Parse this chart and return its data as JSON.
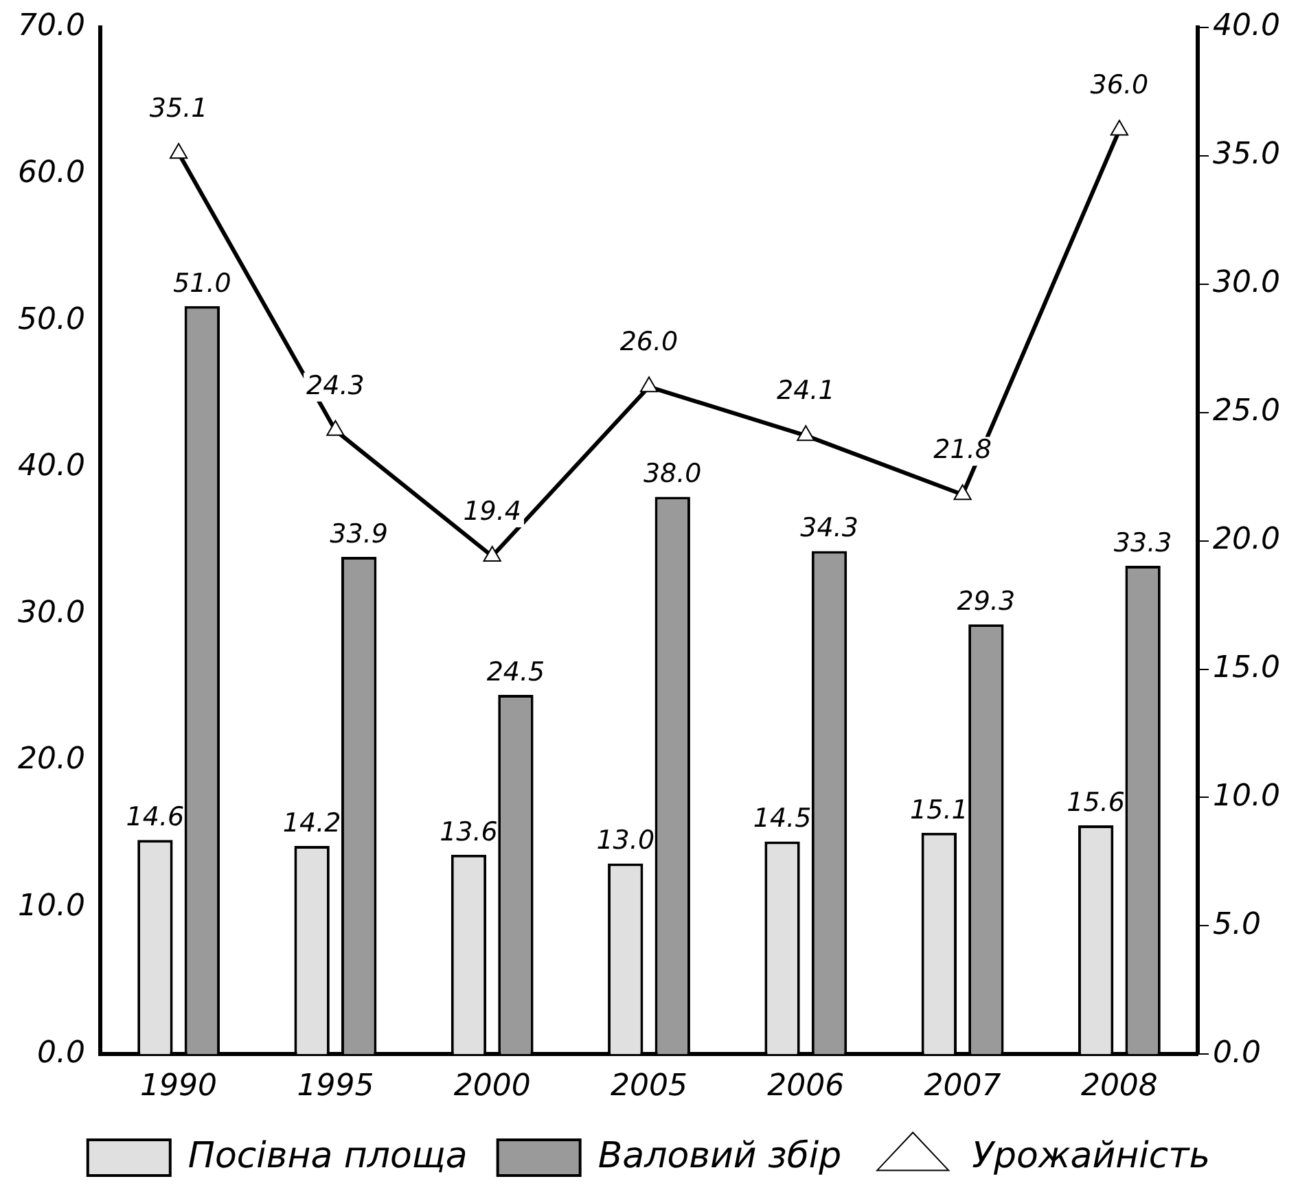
{
  "chart_data": {
    "type": "bar",
    "categories": [
      "1990",
      "1995",
      "2000",
      "2005",
      "2006",
      "2007",
      "2008"
    ],
    "series": [
      {
        "name": "Посівна площа",
        "color": "#e0e0e0",
        "values": [
          14.6,
          14.2,
          13.6,
          13.0,
          14.5,
          15.1,
          15.6
        ],
        "value_labels": [
          "14.6",
          "14.2",
          "13.6",
          "13.0",
          "14.5",
          "15.1",
          "15.6"
        ]
      },
      {
        "name": "Валовий збір",
        "color": "#9a9a9a",
        "values": [
          51.0,
          33.9,
          24.5,
          38.0,
          34.3,
          29.3,
          33.3
        ],
        "value_labels": [
          "51.0",
          "33.9",
          "24.5",
          "38.0",
          "34.3",
          "29.3",
          "33.3"
        ]
      },
      {
        "name": "Урожайність",
        "type": "line",
        "axis": "y2",
        "color": "#000000",
        "values": [
          35.1,
          24.3,
          19.4,
          26.0,
          24.1,
          21.8,
          36.0
        ],
        "value_labels": [
          "35.1",
          "24.3",
          "19.4",
          "26.0",
          "24.1",
          "21.8",
          "36.0"
        ]
      }
    ],
    "ylim": [
      0,
      70
    ],
    "yticks": [
      {
        "value": 0,
        "label": "0.0"
      },
      {
        "value": 10,
        "label": "10.0"
      },
      {
        "value": 20,
        "label": "20.0"
      },
      {
        "value": 30,
        "label": "30.0"
      },
      {
        "value": 40,
        "label": "40.0"
      },
      {
        "value": 50,
        "label": "50.0"
      },
      {
        "value": 60,
        "label": "60.0"
      },
      {
        "value": 70,
        "label": "70.0"
      }
    ],
    "y2lim": [
      0,
      40
    ],
    "y2ticks": [
      {
        "value": 0,
        "label": "0.0"
      },
      {
        "value": 5,
        "label": "5.0"
      },
      {
        "value": 10,
        "label": "10.0"
      },
      {
        "value": 15,
        "label": "15.0"
      },
      {
        "value": 20,
        "label": "20.0"
      },
      {
        "value": 25,
        "label": "25.0"
      },
      {
        "value": 30,
        "label": "30.0"
      },
      {
        "value": 35,
        "label": "35.0"
      },
      {
        "value": 40,
        "label": "40.0"
      }
    ],
    "grid": false,
    "legend": "bottom",
    "marker": "triangle",
    "line_style": "solid"
  }
}
